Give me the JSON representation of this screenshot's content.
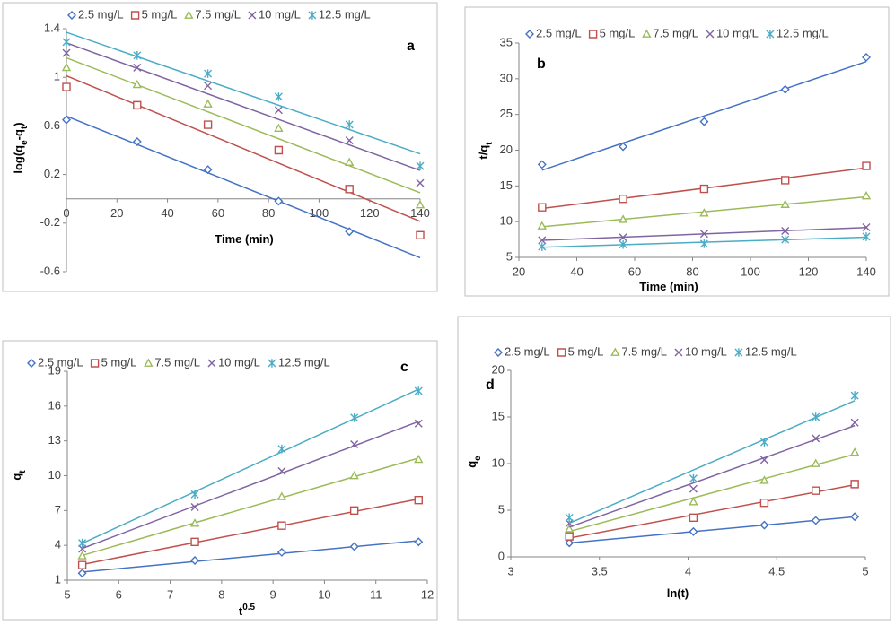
{
  "chart_data": [
    {
      "type": "scatter",
      "panel_label": "a",
      "trendline": "linear",
      "x_label": [
        {
          "text": "Time (min)"
        }
      ],
      "y_label": [
        {
          "text": "log(q"
        },
        {
          "text": "e",
          "script": "sub"
        },
        {
          "text": "-q"
        },
        {
          "text": "t",
          "script": "sub"
        },
        {
          "text": ")"
        }
      ],
      "x": [
        0,
        28,
        56,
        84,
        112,
        140
      ],
      "xlim": [
        0,
        140
      ],
      "xticks": [
        0,
        20,
        40,
        60,
        80,
        100,
        120,
        140
      ],
      "ylim": [
        -0.6,
        1.4
      ],
      "yticks": [
        -0.6,
        -0.2,
        0.2,
        0.6,
        1,
        1.4
      ],
      "series": [
        {
          "name": "2.5 mg/L",
          "color": "#4472c4",
          "marker": "diamond",
          "values": [
            0.65,
            0.47,
            0.24,
            -0.02,
            -0.27,
            null
          ]
        },
        {
          "name": "5 mg/L",
          "color": "#c0504d",
          "marker": "square",
          "values": [
            0.92,
            0.77,
            0.61,
            0.4,
            0.08,
            -0.3
          ]
        },
        {
          "name": "7.5 mg/L",
          "color": "#9bbb59",
          "marker": "triangle",
          "values": [
            1.08,
            0.94,
            0.78,
            0.58,
            0.3,
            -0.05
          ]
        },
        {
          "name": "10 mg/L",
          "color": "#8064a2",
          "marker": "x",
          "values": [
            1.2,
            1.08,
            0.93,
            0.73,
            0.48,
            0.13
          ]
        },
        {
          "name": "12.5 mg/L",
          "color": "#4bacc6",
          "marker": "star",
          "values": [
            1.29,
            1.18,
            1.03,
            0.84,
            0.61,
            0.27
          ]
        }
      ]
    },
    {
      "type": "scatter",
      "panel_label": "b",
      "trendline": "linear",
      "x_label": [
        {
          "text": "Time (min)"
        }
      ],
      "y_label": [
        {
          "text": "t/q"
        },
        {
          "text": "t",
          "script": "sub"
        }
      ],
      "x": [
        28,
        56,
        84,
        112,
        140
      ],
      "xlim": [
        20,
        140
      ],
      "xticks": [
        20,
        40,
        60,
        80,
        100,
        120,
        140
      ],
      "ylim": [
        5,
        35
      ],
      "yticks": [
        5,
        10,
        15,
        20,
        25,
        30,
        35
      ],
      "series": [
        {
          "name": "2.5 mg/L",
          "color": "#4472c4",
          "marker": "diamond",
          "values": [
            18,
            20.5,
            24,
            28.5,
            33
          ]
        },
        {
          "name": "5 mg/L",
          "color": "#c0504d",
          "marker": "square",
          "values": [
            12,
            13.2,
            14.6,
            15.8,
            17.8
          ]
        },
        {
          "name": "7.5 mg/L",
          "color": "#9bbb59",
          "marker": "triangle",
          "values": [
            9.4,
            10.3,
            11.2,
            12.4,
            13.6
          ]
        },
        {
          "name": "10 mg/L",
          "color": "#8064a2",
          "marker": "x",
          "values": [
            7.4,
            7.8,
            8.3,
            8.7,
            9.2
          ]
        },
        {
          "name": "12.5 mg/L",
          "color": "#4bacc6",
          "marker": "star",
          "values": [
            6.5,
            6.8,
            6.9,
            7.5,
            7.9
          ]
        }
      ]
    },
    {
      "type": "scatter",
      "panel_label": "c",
      "trendline": "linear",
      "x_label": [
        {
          "text": "t"
        },
        {
          "text": "0.5",
          "script": "sup"
        }
      ],
      "y_label": [
        {
          "text": "q"
        },
        {
          "text": "t",
          "script": "sub"
        }
      ],
      "x": [
        5.29,
        7.48,
        9.17,
        10.58,
        11.83
      ],
      "xlim": [
        5,
        12
      ],
      "xticks": [
        5,
        6,
        7,
        8,
        9,
        10,
        11,
        12
      ],
      "ylim": [
        1,
        19
      ],
      "yticks": [
        1,
        4,
        7,
        10,
        13,
        16,
        19
      ],
      "series": [
        {
          "name": "2.5 mg/L",
          "color": "#4472c4",
          "marker": "diamond",
          "values": [
            1.6,
            2.7,
            3.4,
            3.9,
            4.3
          ]
        },
        {
          "name": "5 mg/L",
          "color": "#c0504d",
          "marker": "square",
          "values": [
            2.3,
            4.3,
            5.7,
            7.0,
            7.9
          ]
        },
        {
          "name": "7.5 mg/L",
          "color": "#9bbb59",
          "marker": "triangle",
          "values": [
            3.1,
            5.9,
            8.2,
            10.0,
            11.4
          ]
        },
        {
          "name": "10 mg/L",
          "color": "#8064a2",
          "marker": "x",
          "values": [
            3.7,
            7.3,
            10.4,
            12.7,
            14.5
          ]
        },
        {
          "name": "12.5 mg/L",
          "color": "#4bacc6",
          "marker": "star",
          "values": [
            4.2,
            8.4,
            12.3,
            15.0,
            17.3
          ]
        }
      ]
    },
    {
      "type": "scatter",
      "panel_label": "d",
      "trendline": "linear",
      "x_label": [
        {
          "text": "ln(t)"
        }
      ],
      "y_label": [
        {
          "text": "q"
        },
        {
          "text": "e",
          "script": "sub"
        }
      ],
      "x": [
        3.33,
        4.03,
        4.43,
        4.72,
        4.94
      ],
      "xlim": [
        3,
        5
      ],
      "xticks": [
        3,
        3.5,
        4,
        4.5,
        5
      ],
      "ylim": [
        0,
        20
      ],
      "yticks": [
        0,
        5,
        10,
        15,
        20
      ],
      "series": [
        {
          "name": "2.5 mg/L",
          "color": "#4472c4",
          "marker": "diamond",
          "values": [
            1.5,
            2.7,
            3.4,
            3.9,
            4.3
          ]
        },
        {
          "name": "5 mg/L",
          "color": "#c0504d",
          "marker": "square",
          "values": [
            2.2,
            4.2,
            5.8,
            7.1,
            7.8
          ]
        },
        {
          "name": "7.5 mg/L",
          "color": "#9bbb59",
          "marker": "triangle",
          "values": [
            3.0,
            5.9,
            8.2,
            10.0,
            11.2
          ]
        },
        {
          "name": "10 mg/L",
          "color": "#8064a2",
          "marker": "x",
          "values": [
            3.6,
            7.3,
            10.4,
            12.7,
            14.4
          ]
        },
        {
          "name": "12.5 mg/L",
          "color": "#4bacc6",
          "marker": "star",
          "values": [
            4.2,
            8.4,
            12.3,
            15.0,
            17.3
          ]
        }
      ]
    }
  ]
}
